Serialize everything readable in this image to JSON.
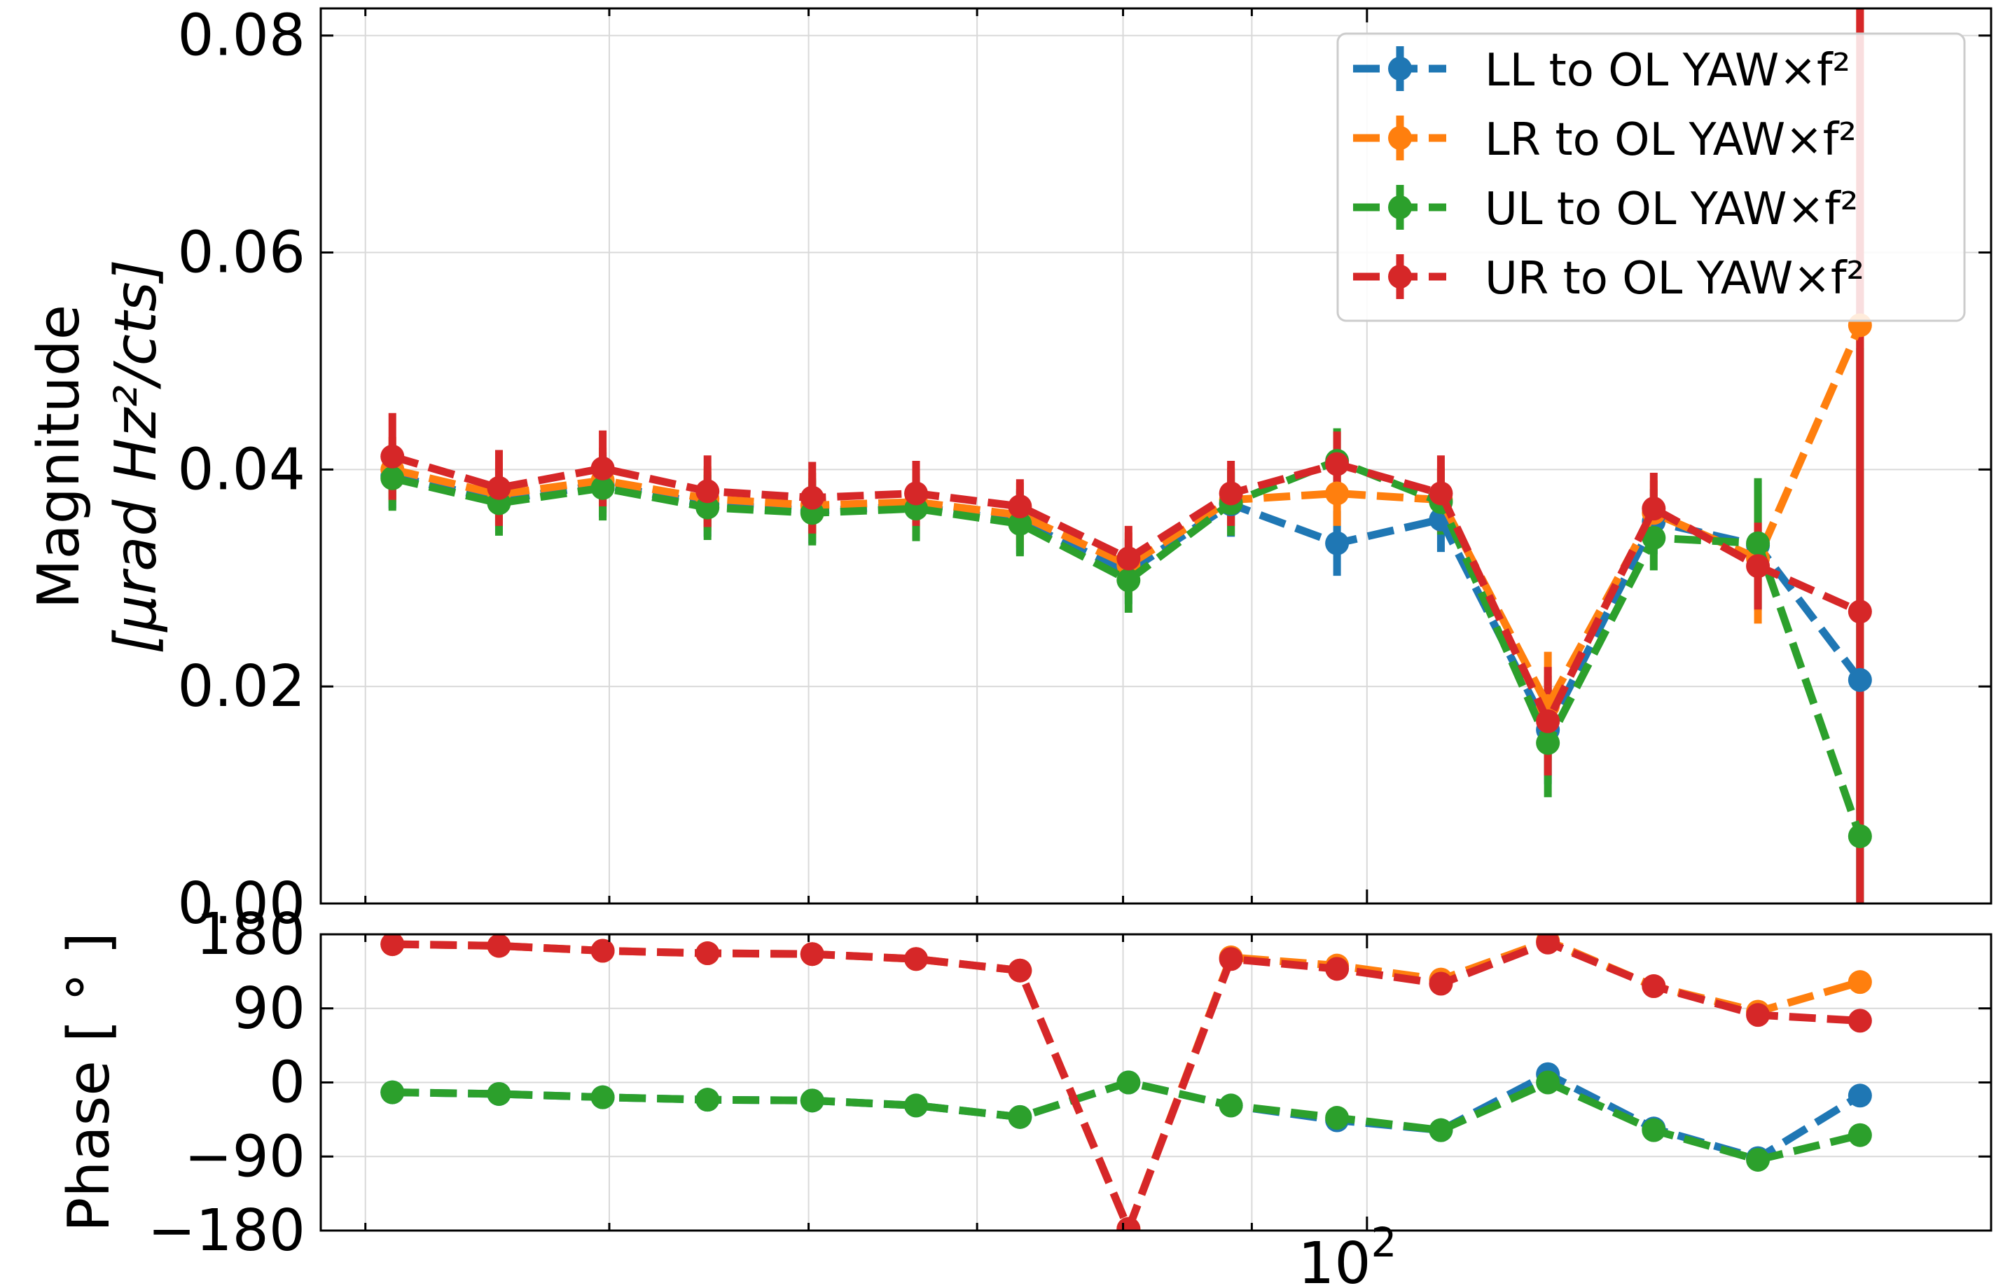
{
  "chart_data": [
    {
      "type": "line",
      "panel": "magnitude",
      "title": "",
      "xlabel": "",
      "ylabel_lines": [
        "Magnitude",
        "[μrad Hz²/cts]"
      ],
      "xscale": "log",
      "xlim": [
        38.4,
        177
      ],
      "ylim": [
        0.0,
        0.0825
      ],
      "yticks": [
        0.0,
        0.02,
        0.04,
        0.06,
        0.08
      ],
      "ytick_labels": [
        "0.00",
        "0.02",
        "0.04",
        "0.06",
        "0.08"
      ],
      "grid": true,
      "legend_position": "top-right",
      "x": [
        41.0,
        45.2,
        49.7,
        54.7,
        60.2,
        66.2,
        72.8,
        80.4,
        88.3,
        97.3,
        107.0,
        118.0,
        130.0,
        143.0,
        157.0
      ],
      "series": [
        {
          "name": "LL to OL YAW×f²",
          "color": "#1f77b4",
          "values": [
            0.0394,
            0.0372,
            0.0386,
            0.0368,
            0.0362,
            0.0366,
            0.0352,
            0.0306,
            0.0368,
            0.0332,
            0.0354,
            0.016,
            0.0352,
            0.033,
            0.0206
          ],
          "errors": [
            0.003,
            0.003,
            0.003,
            0.003,
            0.003,
            0.003,
            0.003,
            0.003,
            0.003,
            0.003,
            0.003,
            0.005,
            0.003,
            0.006,
            0.045
          ]
        },
        {
          "name": "LR to OL YAW×f²",
          "color": "#ff7f0e",
          "values": [
            0.04,
            0.0377,
            0.039,
            0.0373,
            0.0367,
            0.037,
            0.0358,
            0.0312,
            0.0372,
            0.0378,
            0.0372,
            0.0182,
            0.036,
            0.0318,
            0.0533
          ],
          "errors": [
            0.003,
            0.003,
            0.003,
            0.003,
            0.003,
            0.003,
            0.003,
            0.003,
            0.003,
            0.003,
            0.003,
            0.005,
            0.003,
            0.006,
            0.045
          ]
        },
        {
          "name": "UL to OL YAW×f²",
          "color": "#2ca02c",
          "values": [
            0.0392,
            0.0369,
            0.0383,
            0.0365,
            0.036,
            0.0364,
            0.035,
            0.0298,
            0.0369,
            0.0408,
            0.037,
            0.0148,
            0.0337,
            0.0332,
            0.0062
          ],
          "errors": [
            0.003,
            0.003,
            0.003,
            0.003,
            0.003,
            0.003,
            0.003,
            0.003,
            0.003,
            0.003,
            0.003,
            0.005,
            0.003,
            0.006,
            0.045
          ]
        },
        {
          "name": "UR to OL YAW×f²",
          "color": "#d62728",
          "values": [
            0.0412,
            0.0383,
            0.0401,
            0.038,
            0.0374,
            0.0378,
            0.0366,
            0.0318,
            0.0378,
            0.0405,
            0.0378,
            0.0168,
            0.0364,
            0.0311,
            0.0269
          ],
          "errors": [
            0.004,
            0.0035,
            0.0035,
            0.0033,
            0.0033,
            0.003,
            0.0025,
            0.003,
            0.003,
            0.003,
            0.0035,
            0.005,
            0.0033,
            0.004,
            0.06
          ]
        }
      ]
    },
    {
      "type": "line",
      "panel": "phase",
      "xlabel": "",
      "ylabel": "Phase [ ° ]",
      "xscale": "log",
      "xlim": [
        38.4,
        177
      ],
      "ylim": [
        -180,
        180
      ],
      "yticks": [
        -180,
        -90,
        0,
        90,
        180
      ],
      "ytick_labels": [
        "−180",
        "−90",
        "0",
        "90",
        "180"
      ],
      "xticks": [
        100
      ],
      "xtick_labels": [
        "10",
        "2"
      ],
      "grid": true,
      "x": [
        41.0,
        45.2,
        49.7,
        54.7,
        60.2,
        66.2,
        72.8,
        80.4,
        88.3,
        97.3,
        107.0,
        118.0,
        130.0,
        143.0,
        157.0
      ],
      "series": [
        {
          "name": "LL to OL YAW×f²",
          "color": "#1f77b4",
          "values": [
            -12,
            -14,
            -18,
            -21,
            -22,
            -28,
            -42,
            0,
            -28,
            -46,
            -58,
            10,
            -56,
            -92,
            -16
          ]
        },
        {
          "name": "LR to OL YAW×f²",
          "color": "#ff7f0e",
          "values": [
            168,
            166,
            160,
            157,
            156,
            150,
            136,
            -178,
            152,
            142,
            125,
            172,
            117,
            86,
            122
          ]
        },
        {
          "name": "UL to OL YAW×f²",
          "color": "#2ca02c",
          "values": [
            -12,
            -14,
            -18,
            -21,
            -22,
            -28,
            -42,
            0,
            -28,
            -43,
            -58,
            0,
            -58,
            -94,
            -64
          ]
        },
        {
          "name": "UR to OL YAW×f²",
          "color": "#d62728",
          "values": [
            168,
            166,
            160,
            157,
            156,
            150,
            136,
            -178,
            150,
            138,
            120,
            170,
            117,
            82,
            75
          ]
        }
      ]
    }
  ]
}
